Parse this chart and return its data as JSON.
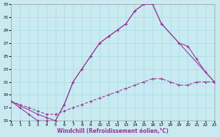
{
  "xlabel": "Windchill (Refroidissement éolien,°C)",
  "bg_color": "#c8eaf0",
  "grid_color": "#aadde8",
  "line_color": "#993399",
  "xlim": [
    0,
    23
  ],
  "ylim": [
    15,
    33
  ],
  "xticks": [
    0,
    1,
    2,
    3,
    4,
    5,
    6,
    7,
    8,
    9,
    10,
    11,
    12,
    13,
    14,
    15,
    16,
    17,
    18,
    19,
    20,
    21,
    22,
    23
  ],
  "yticks": [
    15,
    17,
    19,
    21,
    23,
    25,
    27,
    29,
    31,
    33
  ],
  "line1_x": [
    0,
    1,
    2,
    3,
    4,
    5,
    6,
    7,
    8,
    9,
    10,
    11,
    12,
    13,
    14,
    15,
    16,
    17,
    23
  ],
  "line1_y": [
    18,
    17,
    16,
    15,
    15,
    15,
    17.5,
    21,
    23,
    25,
    27,
    28,
    29,
    30,
    32,
    33,
    33,
    30,
    21
  ],
  "line2_x": [
    0,
    3,
    4,
    5,
    6,
    7,
    8,
    9,
    10,
    11,
    12,
    13,
    14,
    15,
    16,
    17,
    19,
    20,
    21,
    22,
    23
  ],
  "line2_y": [
    18,
    16,
    15.5,
    15,
    17.5,
    21,
    23,
    25,
    27,
    28,
    29,
    30,
    32,
    33,
    33,
    30,
    27,
    26.5,
    24.5,
    22.5,
    21
  ],
  "line3_x": [
    0,
    1,
    2,
    3,
    4,
    5,
    6,
    7,
    8,
    9,
    10,
    11,
    12,
    13,
    14,
    15,
    16,
    17,
    18,
    19,
    20,
    21,
    22,
    23
  ],
  "line3_y": [
    18,
    17.5,
    17,
    16.5,
    16,
    16,
    16.5,
    17,
    17.5,
    18,
    18.5,
    19,
    19.5,
    20,
    20.5,
    21,
    21.5,
    21.5,
    21,
    20.5,
    20.5,
    21,
    21,
    21
  ]
}
